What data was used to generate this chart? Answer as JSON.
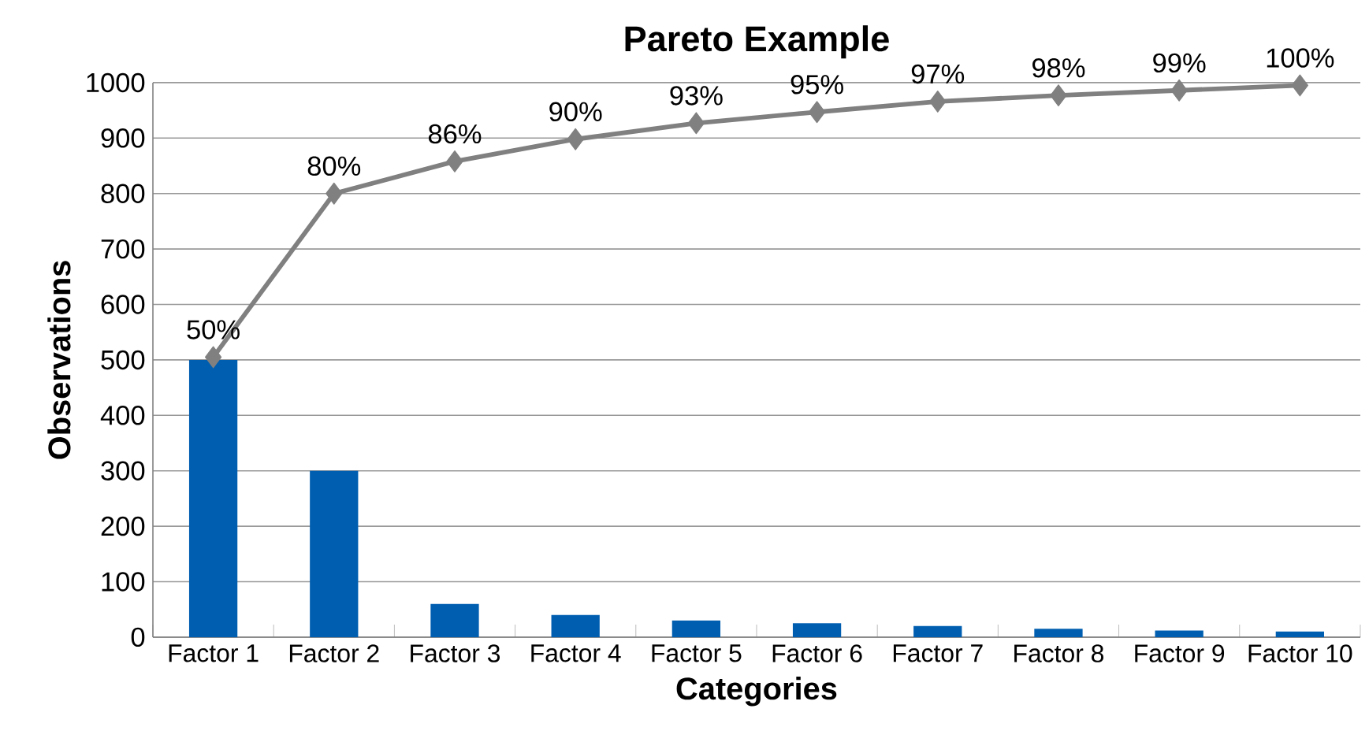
{
  "chart_data": {
    "type": "bar",
    "title": "Pareto Example",
    "xlabel": "Categories",
    "ylabel": "Observations",
    "categories": [
      "Factor 1",
      "Factor 2",
      "Factor 3",
      "Factor 4",
      "Factor 5",
      "Factor 6",
      "Factor 7",
      "Factor 8",
      "Factor 9",
      "Factor 10"
    ],
    "series": [
      {
        "color": "#005eb0",
        "values": [
          500,
          300,
          60,
          40,
          30,
          25,
          20,
          15,
          12,
          10
        ]
      },
      {
        "type": "line",
        "color": "#808080",
        "marker": "diamond",
        "values": [
          505,
          800,
          858,
          898,
          927,
          947,
          966,
          977,
          986,
          995
        ]
      }
    ],
    "annotations": [
      {
        "text": "50%",
        "x": "Factor 1",
        "y": 505
      },
      {
        "text": "80%",
        "x": "Factor 2",
        "y": 800
      },
      {
        "text": "86%",
        "x": "Factor 3",
        "y": 858
      },
      {
        "text": "90%",
        "x": "Factor 4",
        "y": 898
      },
      {
        "text": "93%",
        "x": "Factor 5",
        "y": 927
      },
      {
        "text": "95%",
        "x": "Factor 6",
        "y": 947
      },
      {
        "text": "97%",
        "x": "Factor 7",
        "y": 966
      },
      {
        "text": "98%",
        "x": "Factor 8",
        "y": 977
      },
      {
        "text": "99%",
        "x": "Factor 9",
        "y": 986
      },
      {
        "text": "100%",
        "x": "Factor 10",
        "y": 995
      }
    ],
    "ylim": [
      0,
      1000
    ],
    "yticks": [
      0,
      100,
      200,
      300,
      400,
      500,
      600,
      700,
      800,
      900,
      1000
    ],
    "grid": "y"
  }
}
